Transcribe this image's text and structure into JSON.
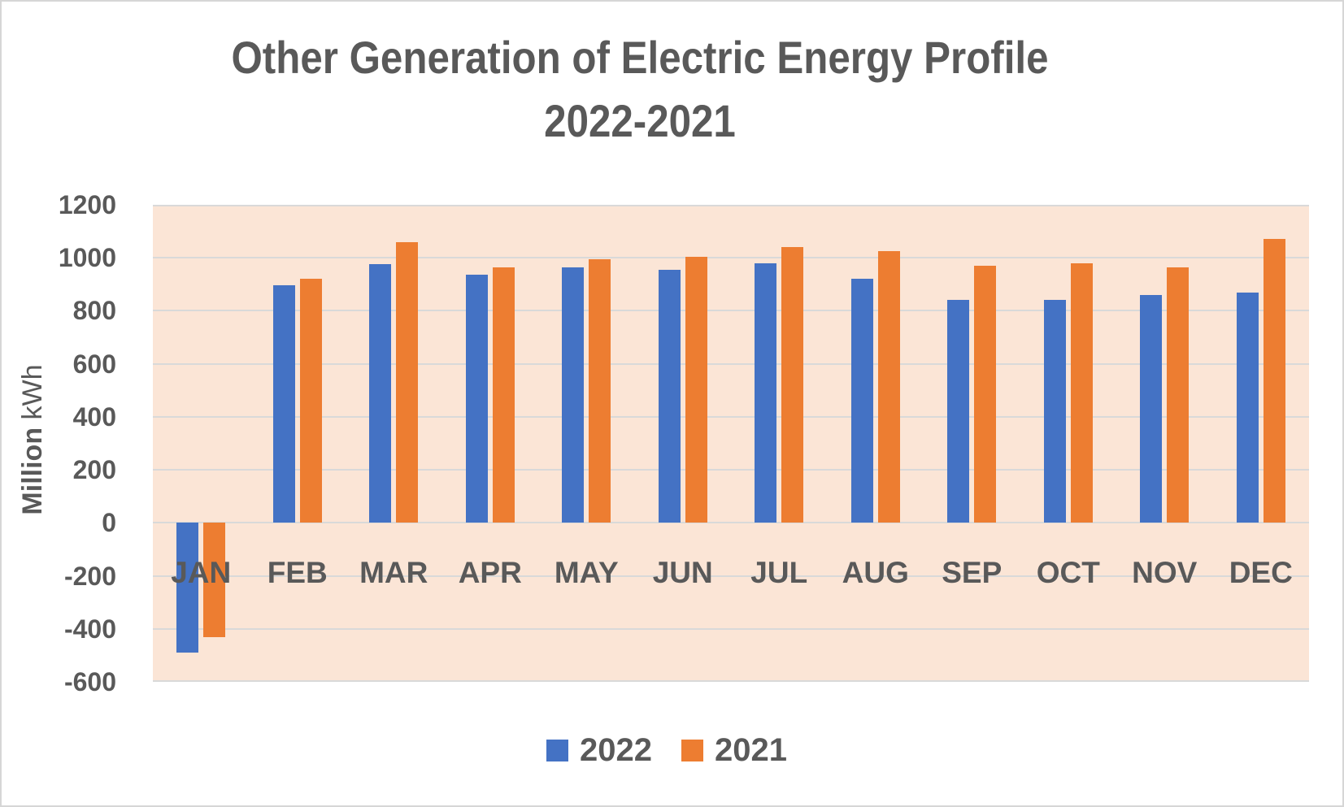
{
  "title": {
    "line1": "Other Generation of Electric Energy Profile",
    "line2": "2022-2021"
  },
  "y_axis": {
    "title_bold": "Million",
    "title_regular": "kWh",
    "tick_labels": [
      "1200",
      "1000",
      "800",
      "600",
      "400",
      "200",
      "0",
      "-200",
      "-400",
      "-600"
    ]
  },
  "legend": {
    "items": [
      {
        "label": "2022",
        "color": "#4472C4"
      },
      {
        "label": "2021",
        "color": "#ED7D31"
      }
    ]
  },
  "colors": {
    "series_2022": "#4472C4",
    "series_2021": "#ED7D31",
    "plot_background": "#FBE5D6",
    "gridline": "#D9D9D9",
    "text": "#595959"
  },
  "chart_data": {
    "type": "bar",
    "title": "Other Generation of Electric Energy Profile 2022-2021",
    "ylabel": "Million kWh",
    "categories": [
      "JAN",
      "FEB",
      "MAR",
      "APR",
      "MAY",
      "JUN",
      "JUL",
      "AUG",
      "SEP",
      "OCT",
      "NOV",
      "DEC"
    ],
    "series": [
      {
        "name": "2022",
        "color": "#4472C4",
        "values": [
          -490,
          895,
          975,
          935,
          965,
          955,
          980,
          920,
          840,
          840,
          860,
          870
        ]
      },
      {
        "name": "2021",
        "color": "#ED7D31",
        "values": [
          -430,
          920,
          1060,
          965,
          995,
          1005,
          1040,
          1025,
          970,
          980,
          965,
          1070
        ]
      }
    ],
    "ylim": [
      -600,
      1200
    ],
    "ytick_step": 200,
    "grid": true,
    "legend_position": "bottom"
  }
}
